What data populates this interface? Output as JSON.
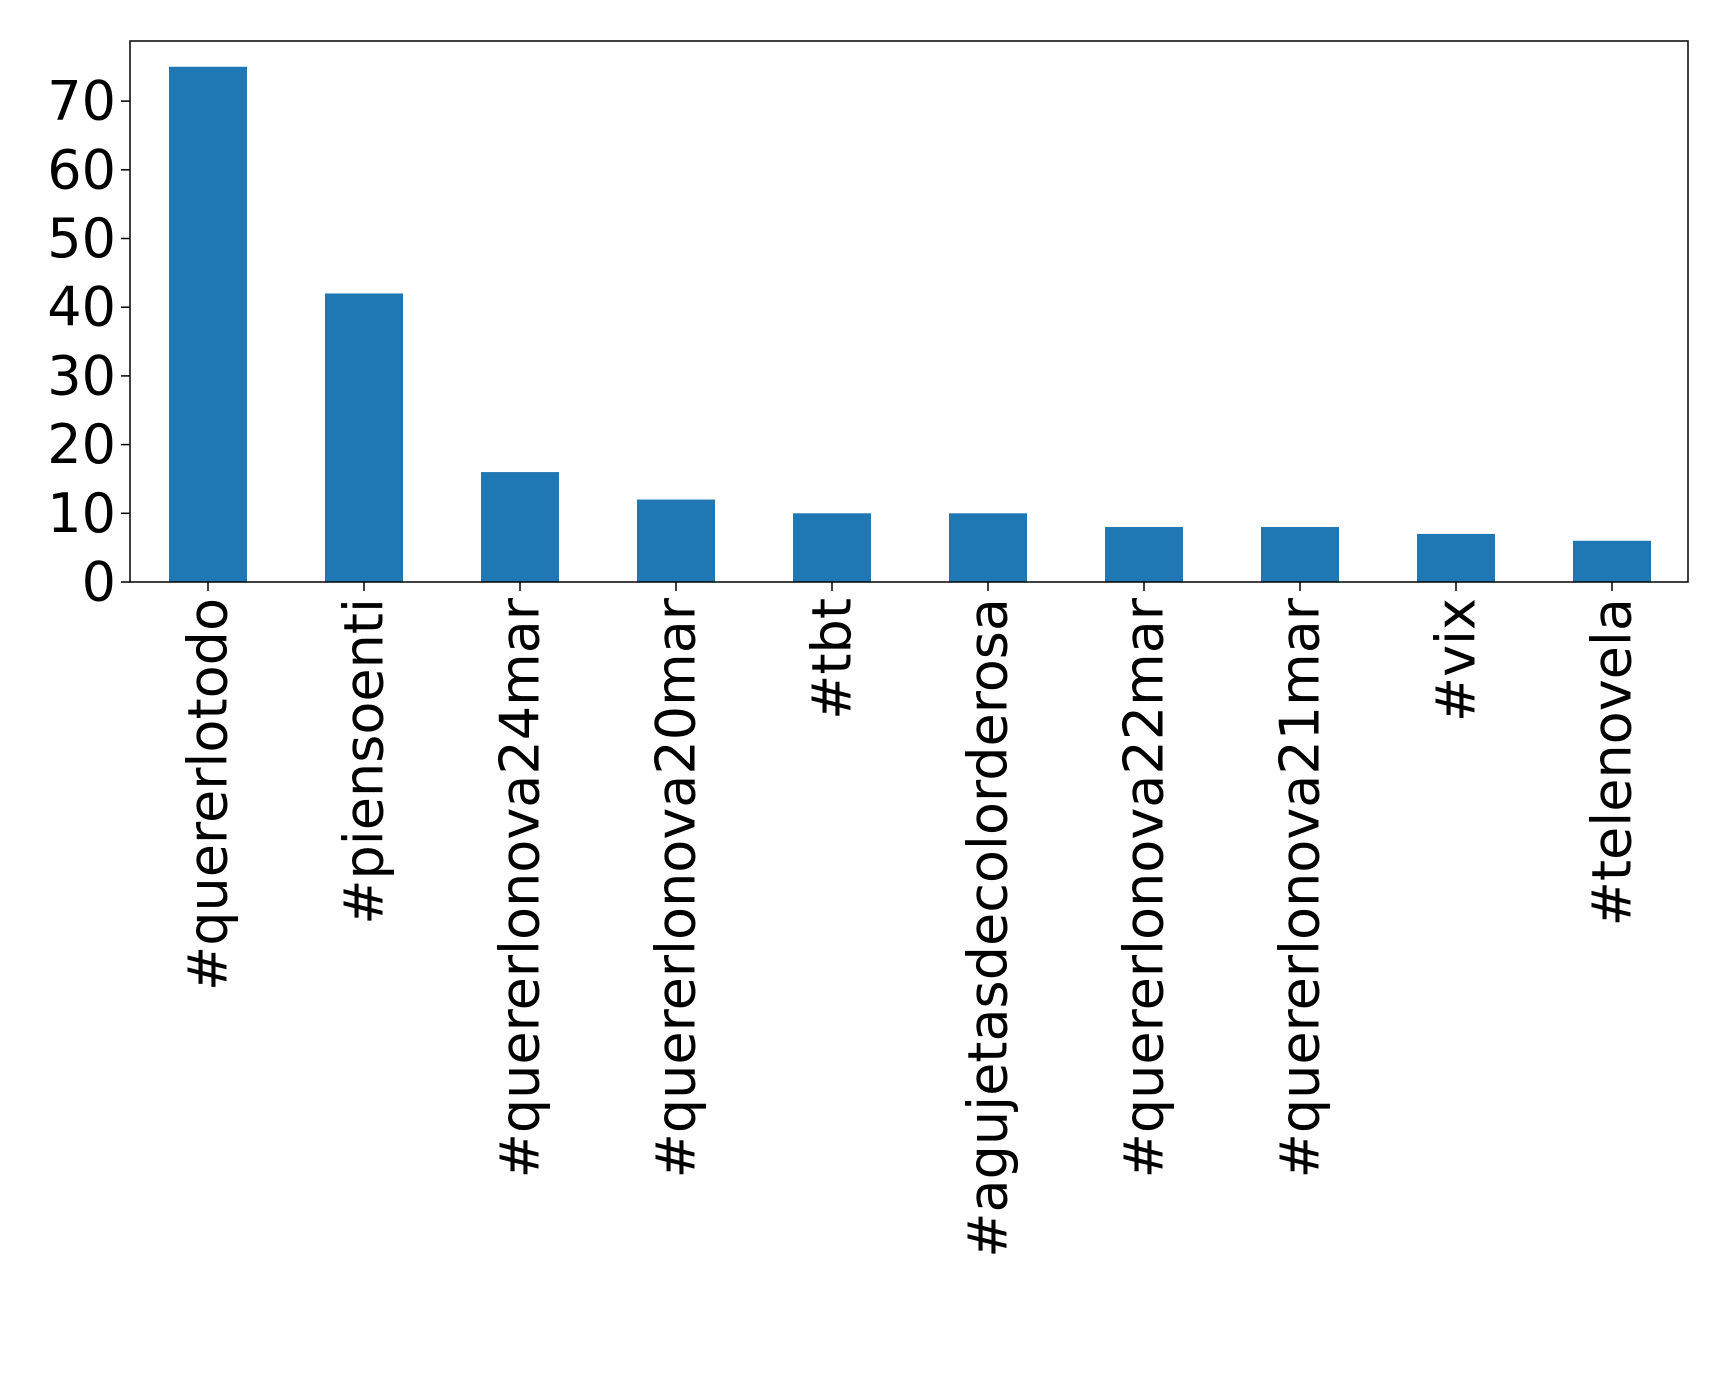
{
  "chart_data": {
    "type": "bar",
    "title": "",
    "xlabel": "",
    "ylabel": "",
    "categories": [
      "#quererlotodo",
      "#piensoenti",
      "#quererlonova24mar",
      "#quererlonova20mar",
      "#tbt",
      "#agujetasdecolorderosa",
      "#quererlonova22mar",
      "#quererlonova21mar",
      "#vix",
      "#telenovela"
    ],
    "values": [
      75,
      42,
      16,
      12,
      10,
      10,
      8,
      8,
      7,
      6
    ],
    "ylim": [
      0,
      78.75
    ],
    "yticks": [
      "0",
      "10",
      "20",
      "30",
      "40",
      "50",
      "60",
      "70"
    ],
    "bar_color": "#1f77b4",
    "grid": false,
    "legend": "none"
  }
}
